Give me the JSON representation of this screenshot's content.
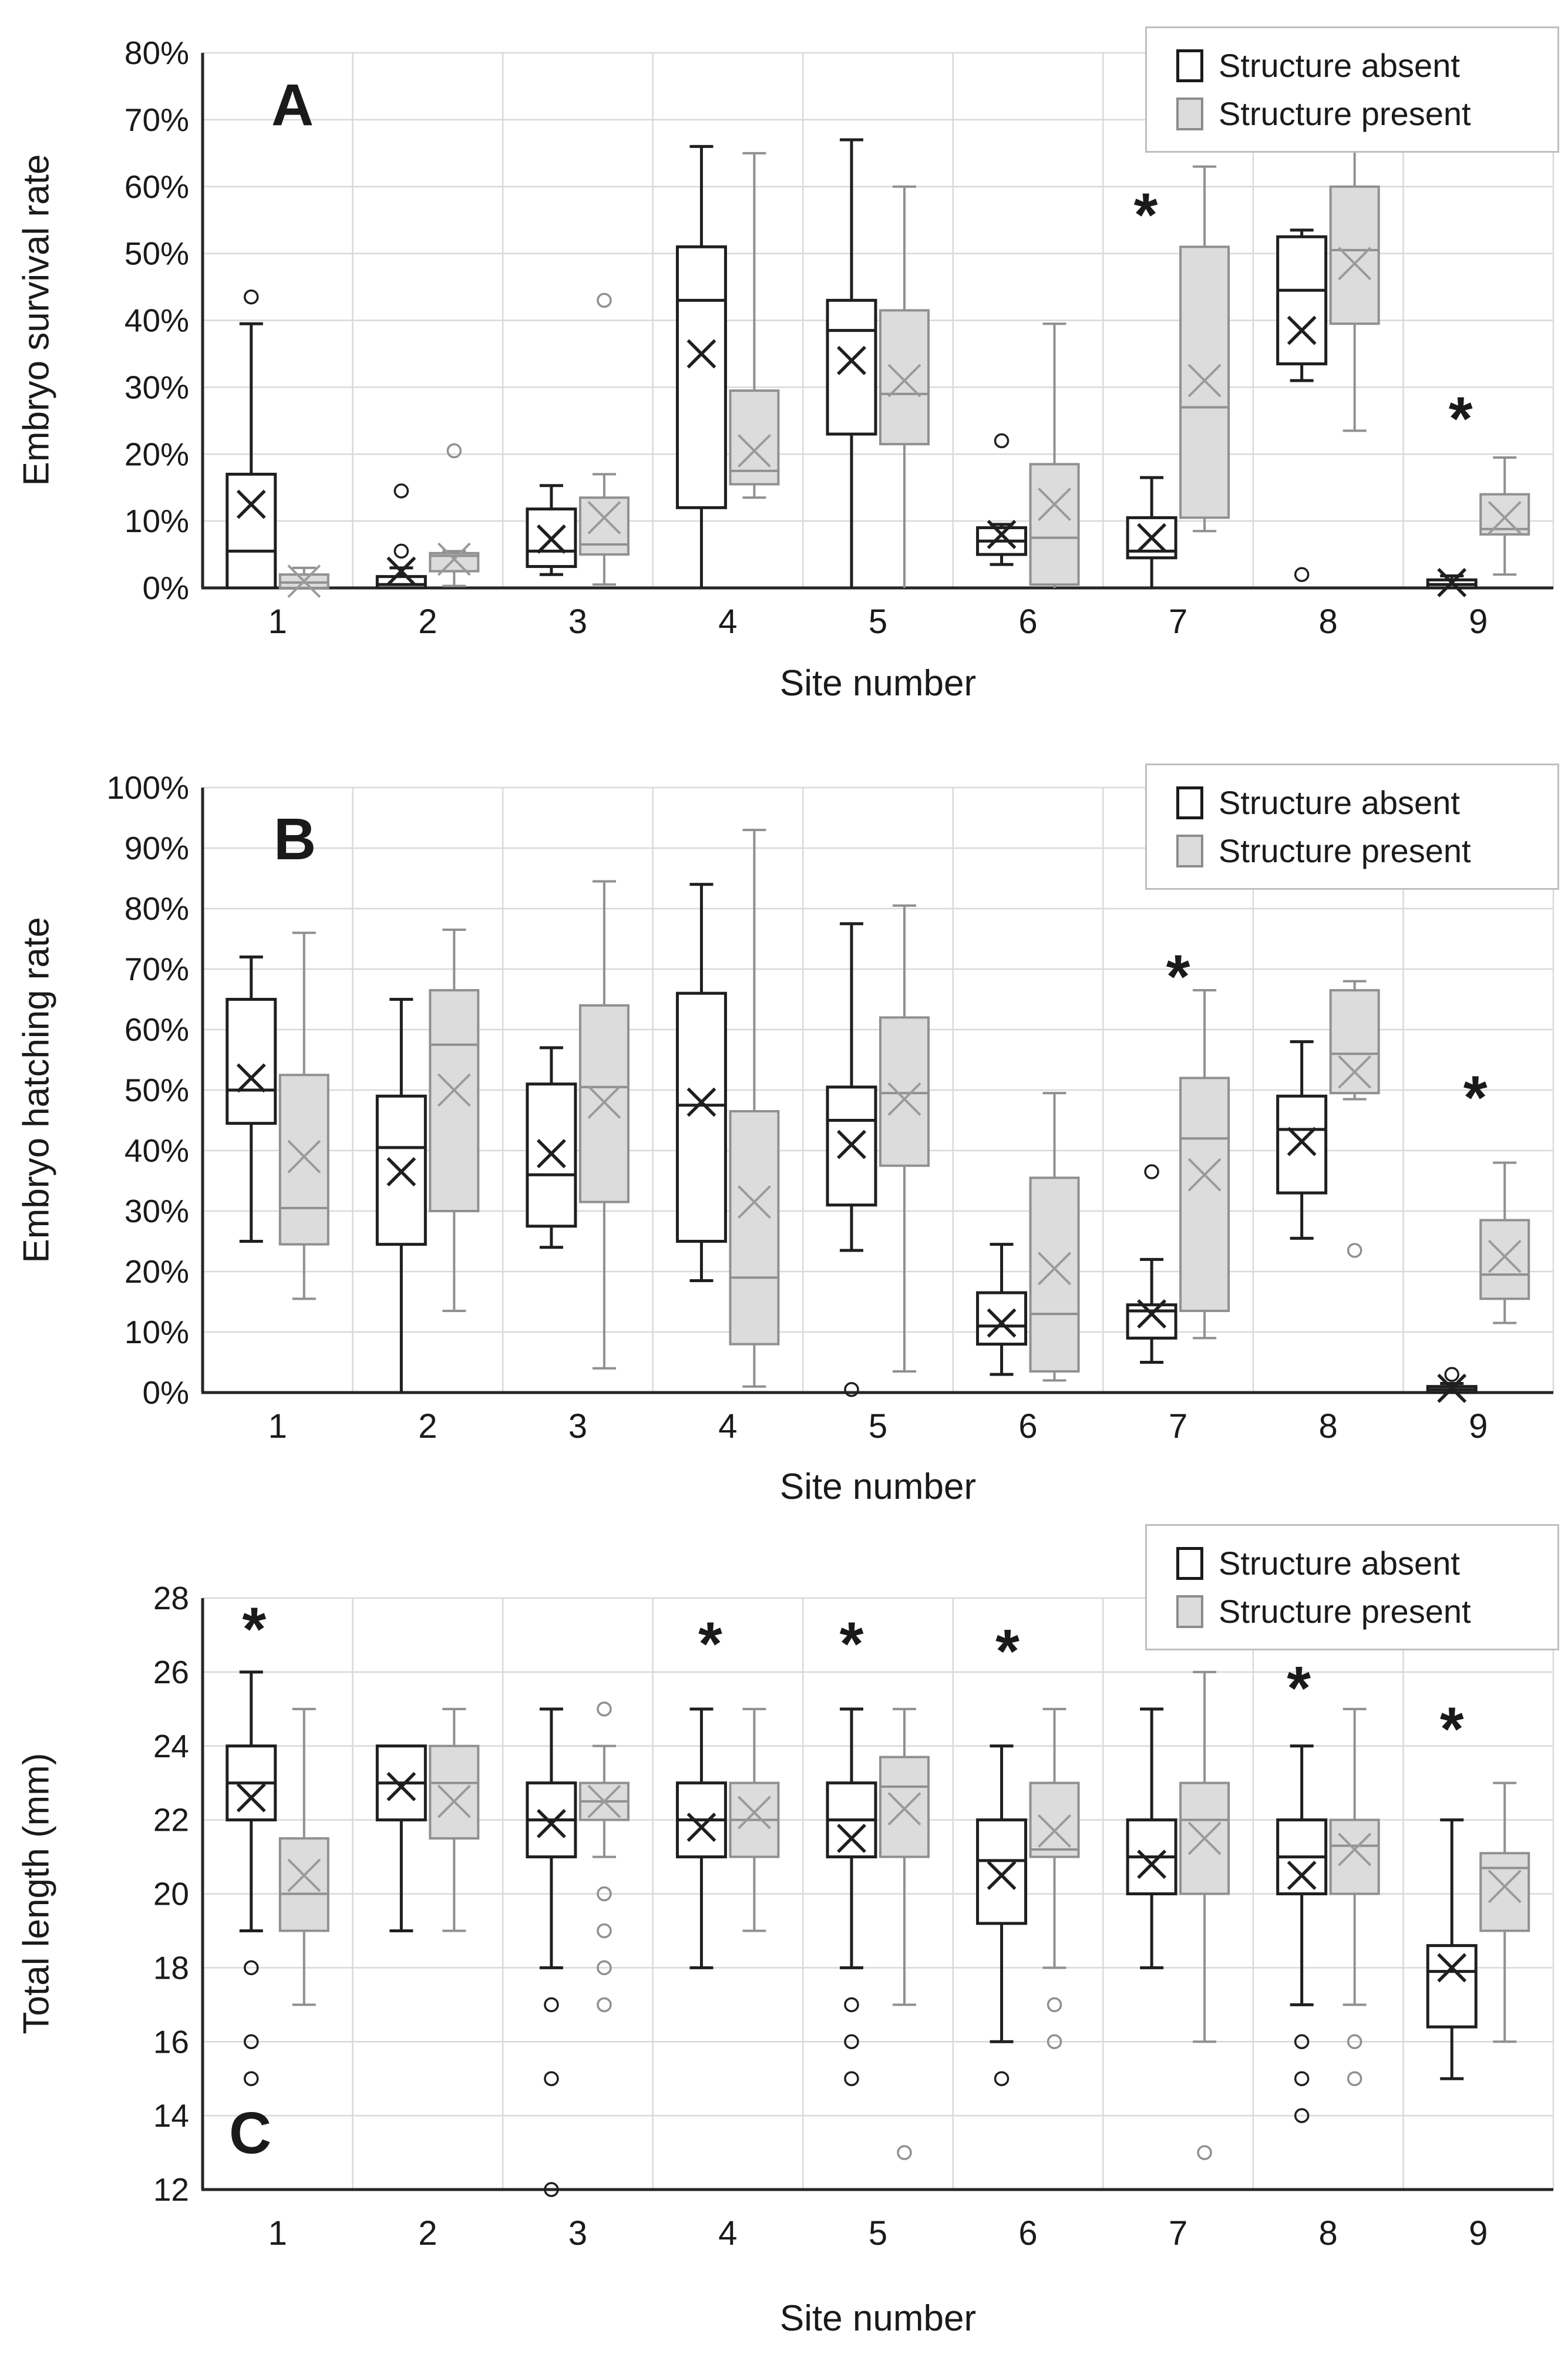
{
  "style": {
    "background": "#ffffff",
    "absent_stroke": "#1f1f1f",
    "absent_fill": "#ffffff",
    "present_stroke": "#909090",
    "present_fill": "#dcdcdc",
    "present_marker": "#9a9a9a",
    "grid_color": "#d9d9d9",
    "axis_color": "#262626",
    "text_color": "#1a1a1a"
  },
  "chart_data": [
    {
      "type": "box",
      "panel_letter": "A",
      "ylabel": "Embryo survival rate",
      "xlabel": "Site number",
      "y_axis": {
        "min": 0,
        "max": 80,
        "step": 10,
        "format": "percent",
        "tick_labels": [
          "0%",
          "10%",
          "20%",
          "30%",
          "40%",
          "50%",
          "60%",
          "70%",
          "80%"
        ]
      },
      "categories": [
        "1",
        "2",
        "3",
        "4",
        "5",
        "6",
        "7",
        "8",
        "9"
      ],
      "legend_position": "top-right",
      "series": [
        {
          "name": "Structure absent",
          "key": "absent",
          "data": [
            {
              "min": 0,
              "q1": 0,
              "med": 5.5,
              "q3": 17,
              "max": 39.5,
              "mean": 12.5,
              "outliers": [
                43.5
              ]
            },
            {
              "min": 0,
              "q1": 0,
              "med": 0.5,
              "q3": 1.7,
              "max": 3,
              "mean": 2.5,
              "outliers": [
                5.5,
                14.5
              ]
            },
            {
              "min": 2,
              "q1": 3.2,
              "med": 5.5,
              "q3": 11.8,
              "max": 15.3,
              "mean": 7.3,
              "outliers": []
            },
            {
              "min": 0,
              "q1": 12,
              "med": 43,
              "q3": 51,
              "max": 66,
              "mean": 35,
              "outliers": []
            },
            {
              "min": 0,
              "q1": 23,
              "med": 38.5,
              "q3": 43,
              "max": 67,
              "mean": 34,
              "outliers": []
            },
            {
              "min": 3.5,
              "q1": 5,
              "med": 7,
              "q3": 9,
              "max": 9.5,
              "mean": 8,
              "outliers": [
                22
              ]
            },
            {
              "min": 0,
              "q1": 4.5,
              "med": 5.5,
              "q3": 10.5,
              "max": 16.5,
              "mean": 7.5,
              "outliers": []
            },
            {
              "min": 31,
              "q1": 33.5,
              "med": 44.5,
              "q3": 52.5,
              "max": 53.5,
              "mean": 38.5,
              "outliers": [
                2
              ]
            },
            {
              "min": 0,
              "q1": 0,
              "med": 0.5,
              "q3": 1.2,
              "max": 1.8,
              "mean": 0.8,
              "outliers": []
            }
          ]
        },
        {
          "name": "Structure present",
          "key": "present",
          "data": [
            {
              "min": 0,
              "q1": 0,
              "med": 0.8,
              "q3": 2,
              "max": 3,
              "mean": 1,
              "outliers": []
            },
            {
              "min": 0.3,
              "q1": 2.5,
              "med": 4.8,
              "q3": 5.2,
              "max": 5.5,
              "mean": 4.3,
              "outliers": [
                20.5
              ]
            },
            {
              "min": 0.5,
              "q1": 5,
              "med": 6.5,
              "q3": 13.5,
              "max": 17,
              "mean": 10.5,
              "outliers": [
                43
              ]
            },
            {
              "min": 13.5,
              "q1": 15.5,
              "med": 17.5,
              "q3": 29.5,
              "max": 65,
              "mean": 20.5,
              "outliers": []
            },
            {
              "min": 0,
              "q1": 21.5,
              "med": 29,
              "q3": 41.5,
              "max": 60,
              "mean": 31,
              "outliers": []
            },
            {
              "min": 0,
              "q1": 0.5,
              "med": 7.5,
              "q3": 18.5,
              "max": 39.5,
              "mean": 12.5,
              "outliers": []
            },
            {
              "min": 8.5,
              "q1": 10.5,
              "med": 27,
              "q3": 51,
              "max": 63,
              "mean": 31,
              "outliers": []
            },
            {
              "min": 23.5,
              "q1": 39.5,
              "med": 50.5,
              "q3": 60,
              "max": 66,
              "mean": 48.5,
              "outliers": []
            },
            {
              "min": 2,
              "q1": 8,
              "med": 8.8,
              "q3": 14,
              "max": 19.5,
              "mean": 10.5,
              "outliers": []
            }
          ]
        }
      ],
      "significance_stars": [
        {
          "site": 7,
          "value": 56,
          "dx": -55
        },
        {
          "site": 9,
          "value": 25.5,
          "dx": -30
        }
      ]
    },
    {
      "type": "box",
      "panel_letter": "B",
      "ylabel": "Embryo hatching rate",
      "xlabel": "Site number",
      "y_axis": {
        "min": 0,
        "max": 100,
        "step": 10,
        "format": "percent",
        "tick_labels": [
          "0%",
          "10%",
          "20%",
          "30%",
          "40%",
          "50%",
          "60%",
          "70%",
          "80%",
          "90%",
          "100%"
        ]
      },
      "categories": [
        "1",
        "2",
        "3",
        "4",
        "5",
        "6",
        "7",
        "8",
        "9"
      ],
      "legend_position": "top-right",
      "series": [
        {
          "name": "Structure absent",
          "key": "absent",
          "data": [
            {
              "min": 25,
              "q1": 44.5,
              "med": 50,
              "q3": 65,
              "max": 72,
              "mean": 52,
              "outliers": []
            },
            {
              "min": 0,
              "q1": 24.5,
              "med": 40.5,
              "q3": 49,
              "max": 65,
              "mean": 36.5,
              "outliers": []
            },
            {
              "min": 24,
              "q1": 27.5,
              "med": 36,
              "q3": 51,
              "max": 57,
              "mean": 39.5,
              "outliers": []
            },
            {
              "min": 18.5,
              "q1": 25,
              "med": 47.5,
              "q3": 66,
              "max": 84,
              "mean": 48,
              "outliers": []
            },
            {
              "min": 23.5,
              "q1": 31,
              "med": 45,
              "q3": 50.5,
              "max": 77.5,
              "mean": 41,
              "outliers": [
                0.5
              ]
            },
            {
              "min": 3,
              "q1": 8,
              "med": 11,
              "q3": 16.5,
              "max": 24.5,
              "mean": 11.5,
              "outliers": []
            },
            {
              "min": 5,
              "q1": 9,
              "med": 13.5,
              "q3": 14.5,
              "max": 22,
              "mean": 13,
              "outliers": [
                36.5
              ]
            },
            {
              "min": 25.5,
              "q1": 33,
              "med": 43.5,
              "q3": 49,
              "max": 58,
              "mean": 41.5,
              "outliers": []
            },
            {
              "min": 0,
              "q1": 0,
              "med": 0.5,
              "q3": 1,
              "max": 1.5,
              "mean": 0.7,
              "outliers": [
                3
              ]
            }
          ]
        },
        {
          "name": "Structure present",
          "key": "present",
          "data": [
            {
              "min": 15.5,
              "q1": 24.5,
              "med": 30.5,
              "q3": 52.5,
              "max": 76,
              "mean": 39,
              "outliers": []
            },
            {
              "min": 13.5,
              "q1": 30,
              "med": 57.5,
              "q3": 66.5,
              "max": 76.5,
              "mean": 50,
              "outliers": []
            },
            {
              "min": 4,
              "q1": 31.5,
              "med": 50.5,
              "q3": 64,
              "max": 84.5,
              "mean": 48,
              "outliers": []
            },
            {
              "min": 1,
              "q1": 8,
              "med": 19,
              "q3": 46.5,
              "max": 93,
              "mean": 31.5,
              "outliers": []
            },
            {
              "min": 3.5,
              "q1": 37.5,
              "med": 49.5,
              "q3": 62,
              "max": 80.5,
              "mean": 48.5,
              "outliers": []
            },
            {
              "min": 2,
              "q1": 3.5,
              "med": 13,
              "q3": 35.5,
              "max": 49.5,
              "mean": 20.5,
              "outliers": []
            },
            {
              "min": 9,
              "q1": 13.5,
              "med": 42,
              "q3": 52,
              "max": 66.5,
              "mean": 36,
              "outliers": []
            },
            {
              "min": 48.5,
              "q1": 49.5,
              "med": 56,
              "q3": 66.5,
              "max": 68,
              "mean": 53,
              "outliers": [
                23.5
              ]
            },
            {
              "min": 11.5,
              "q1": 15.5,
              "med": 19.5,
              "q3": 28.5,
              "max": 38,
              "mean": 22.5,
              "outliers": []
            }
          ]
        }
      ],
      "significance_stars": [
        {
          "site": 7,
          "value": 69,
          "dx": 0
        },
        {
          "site": 9,
          "value": 49,
          "dx": -5
        }
      ]
    },
    {
      "type": "box",
      "panel_letter": "C",
      "ylabel": "Total length (mm)",
      "xlabel": "Site number",
      "y_axis": {
        "min": 12,
        "max": 28,
        "step": 2,
        "format": "number",
        "tick_labels": [
          "12",
          "14",
          "16",
          "18",
          "20",
          "22",
          "24",
          "26",
          "28"
        ]
      },
      "categories": [
        "1",
        "2",
        "3",
        "4",
        "5",
        "6",
        "7",
        "8",
        "9"
      ],
      "legend_position": "top-right",
      "series": [
        {
          "name": "Structure absent",
          "key": "absent",
          "data": [
            {
              "min": 19,
              "q1": 22,
              "med": 23,
              "q3": 24,
              "max": 26,
              "mean": 22.6,
              "outliers": [
                18,
                16,
                15
              ]
            },
            {
              "min": 19,
              "q1": 22,
              "med": 23,
              "q3": 24,
              "max": 24,
              "mean": 22.9,
              "outliers": []
            },
            {
              "min": 18,
              "q1": 21,
              "med": 22,
              "q3": 23,
              "max": 25,
              "mean": 21.9,
              "outliers": [
                17,
                15,
                12
              ]
            },
            {
              "min": 18,
              "q1": 21,
              "med": 22,
              "q3": 23,
              "max": 25,
              "mean": 21.8,
              "outliers": []
            },
            {
              "min": 18,
              "q1": 21,
              "med": 22,
              "q3": 23,
              "max": 25,
              "mean": 21.5,
              "outliers": [
                17,
                16,
                15
              ]
            },
            {
              "min": 16,
              "q1": 19.2,
              "med": 20.9,
              "q3": 22,
              "max": 24,
              "mean": 20.5,
              "outliers": [
                15
              ]
            },
            {
              "min": 18,
              "q1": 20,
              "med": 21,
              "q3": 22,
              "max": 25,
              "mean": 20.8,
              "outliers": []
            },
            {
              "min": 17,
              "q1": 20,
              "med": 21,
              "q3": 22,
              "max": 24,
              "mean": 20.5,
              "outliers": [
                16,
                15,
                14
              ]
            },
            {
              "min": 15,
              "q1": 16.4,
              "med": 17.9,
              "q3": 18.6,
              "max": 22,
              "mean": 18,
              "outliers": []
            }
          ]
        },
        {
          "name": "Structure present",
          "key": "present",
          "data": [
            {
              "min": 17,
              "q1": 19,
              "med": 20,
              "q3": 21.5,
              "max": 25,
              "mean": 20.5,
              "outliers": []
            },
            {
              "min": 19,
              "q1": 21.5,
              "med": 23,
              "q3": 24,
              "max": 25,
              "mean": 22.5,
              "outliers": []
            },
            {
              "min": 21,
              "q1": 22,
              "med": 22.5,
              "q3": 23,
              "max": 24,
              "mean": 22.5,
              "outliers": [
                25,
                20,
                19,
                18,
                17
              ]
            },
            {
              "min": 19,
              "q1": 21,
              "med": 22,
              "q3": 23,
              "max": 25,
              "mean": 22.2,
              "outliers": []
            },
            {
              "min": 17,
              "q1": 21,
              "med": 22.9,
              "q3": 23.7,
              "max": 25,
              "mean": 22.3,
              "outliers": [
                13
              ]
            },
            {
              "min": 18,
              "q1": 21,
              "med": 21.2,
              "q3": 23,
              "max": 25,
              "mean": 21.7,
              "outliers": [
                17,
                16
              ]
            },
            {
              "min": 16,
              "q1": 20,
              "med": 22,
              "q3": 23,
              "max": 26,
              "mean": 21.5,
              "outliers": [
                13
              ]
            },
            {
              "min": 17,
              "q1": 20,
              "med": 21.3,
              "q3": 22,
              "max": 25,
              "mean": 21.2,
              "outliers": [
                16,
                15
              ]
            },
            {
              "min": 16,
              "q1": 19,
              "med": 20.7,
              "q3": 21.1,
              "max": 23,
              "mean": 20.2,
              "outliers": []
            }
          ]
        }
      ],
      "significance_stars": [
        {
          "site": 1,
          "value": 27.2,
          "dx": -40
        },
        {
          "site": 4,
          "value": 26.8,
          "dx": -30
        },
        {
          "site": 5,
          "value": 26.8,
          "dx": -45
        },
        {
          "site": 6,
          "value": 26.6,
          "dx": -35
        },
        {
          "site": 8,
          "value": 25.6,
          "dx": -50
        },
        {
          "site": 9,
          "value": 24.5,
          "dx": -45
        }
      ]
    }
  ]
}
